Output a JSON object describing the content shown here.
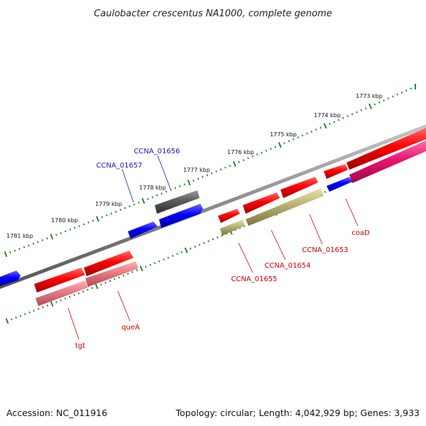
{
  "title": "Caulobacter crescentus NA1000, complete genome",
  "footer": {
    "accession": "Accession: NC_011916",
    "summary": "Topology: circular; Length: 4,042,929 bp; Genes: 3,933"
  },
  "scale_labels": [
    "1773 kbp",
    "1774 kbp",
    "1775 kbp",
    "1776 kbp",
    "1777 kbp",
    "1778 kbp",
    "1779 kbp",
    "1780 kbp",
    "1781 kbp"
  ],
  "genes": [
    {
      "name": "CCNA_01656",
      "track": "reverse-gray"
    },
    {
      "name": "CCNA_01657",
      "track": "reverse-blue"
    },
    {
      "name": "CCNA_01655",
      "track": "forward"
    },
    {
      "name": "CCNA_01654",
      "track": "forward"
    },
    {
      "name": "CCNA_01653",
      "track": "forward"
    },
    {
      "name": "coaD",
      "track": "forward"
    },
    {
      "name": "queA",
      "track": "forward"
    },
    {
      "name": "tgt",
      "track": "forward"
    }
  ],
  "colors": {
    "forward_gene": "#e8000c",
    "reverse_gene": "#1010e0",
    "pseudo_gene": "#555555",
    "cds_forward": "#b8b070",
    "cds_pink": "#e8146e",
    "cds_light": "#e87a84",
    "backbone": "#8a8a8a",
    "ticks": "#1a7a1a",
    "label_blue": "#1a1ab4",
    "label_red": "#cc0000"
  }
}
